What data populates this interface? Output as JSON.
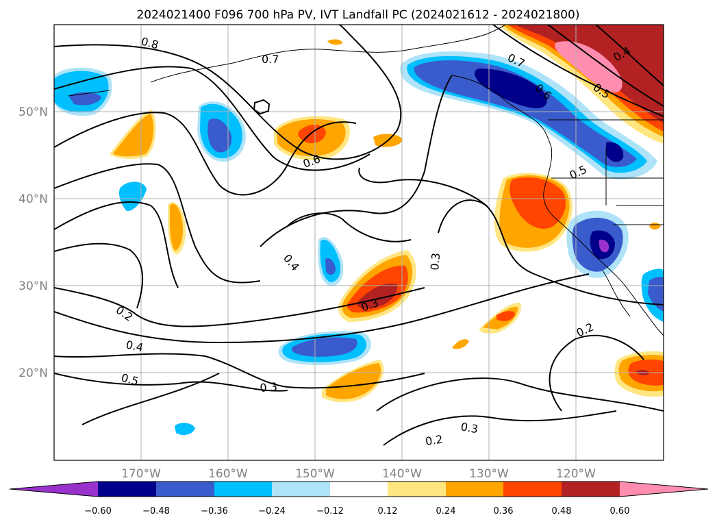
{
  "title": "2024021400 F096 700 hPa PV, IVT Landfall PC (2024021612 - 2024021800)",
  "colors": {
    "neg_extend": "#9932cc",
    "neg_060": "#00008b",
    "neg_048": "#3a5bcc",
    "neg_036": "#00bfff",
    "neg_024": "#aee3f8",
    "neg_012": "#ffffff",
    "pos_012": "#ffe680",
    "pos_024": "#ffa500",
    "pos_036": "#ff4500",
    "pos_048": "#b22222",
    "pos_060": "#ff8db0",
    "land_outline": "#000000",
    "contour": "#000000",
    "grid": "#b0b0b0"
  },
  "map": {
    "lon_ticks": [
      "170°W",
      "160°W",
      "150°W",
      "140°W",
      "130°W",
      "120°W"
    ],
    "lat_ticks": [
      "50°N",
      "40°N",
      "30°N",
      "20°N"
    ],
    "contour_labels": [
      "0.8",
      "0.7",
      "0.7",
      "0.6",
      "0.6",
      "0.5",
      "0.5",
      "0.4",
      "0.4",
      "0.4",
      "0.3",
      "0.3",
      "0.3",
      "0.3",
      "0.2",
      "0.2",
      "0.2",
      "0.5"
    ]
  },
  "colorbar": {
    "ticks": [
      "−0.60",
      "−0.48",
      "−0.36",
      "−0.24",
      "−0.12",
      "0.12",
      "0.24",
      "0.36",
      "0.48",
      "0.60"
    ]
  }
}
